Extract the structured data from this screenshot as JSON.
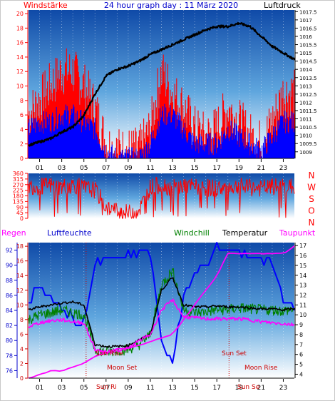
{
  "title": "24 hour graph day : 11 März 2020",
  "colors": {
    "wind_speed": "#ff0000",
    "wind_gust": "#0000ff",
    "pressure": "#000000",
    "wind_dir": "#ff0000",
    "humidity": "#0000ff",
    "windchill": "#008000",
    "temperature": "#000000",
    "dewpoint": "#ff00ff",
    "rain": "#ff0000",
    "axis_left_bottom": "#0000ff",
    "panel_top": "#0f4aa8",
    "panel_bottom": "#ffffff"
  },
  "labels": {
    "windstaerke": "Windstärke",
    "luftdruck": "Luftdruck",
    "regen": "Regen",
    "luftfeuchte": "Luftfeuchte",
    "windchill": "Windchill",
    "temperatur": "Temperatur",
    "taupunkt": "Taupunkt",
    "compass": [
      "N",
      "W",
      "S",
      "O",
      "N"
    ],
    "sun_rise": "Sun Rise",
    "sun_set": "Sun Set",
    "moon_set": "Moon Set",
    "moon_rise": "Moon Rise",
    "sun_ri_short": "Sun Ri",
    "sun_se_short": "Sun Se"
  },
  "x_ticks": [
    "01",
    "03",
    "05",
    "07",
    "09",
    "11",
    "13",
    "15",
    "17",
    "19",
    "21",
    "23"
  ],
  "chart_data": [
    {
      "type": "line",
      "y_left": {
        "ticks": [
          0,
          2,
          4,
          6,
          8,
          10,
          12,
          14,
          16,
          18,
          20
        ],
        "range": [
          0,
          20.5
        ]
      },
      "y_right": {
        "ticks": [
          1009,
          1009.5,
          1010,
          1010.5,
          1011,
          1011.5,
          1012,
          1012.5,
          1013,
          1013.5,
          1014,
          1014.5,
          1015,
          1015.5,
          1016,
          1016.5,
          1017,
          1017.5
        ],
        "range": [
          1008.6,
          1017.6
        ]
      },
      "x": [
        0,
        1,
        2,
        3,
        4,
        5,
        6,
        7,
        8,
        9,
        10,
        11,
        12,
        13,
        14,
        15,
        16,
        17,
        18,
        19,
        20,
        21,
        22,
        23,
        24
      ],
      "series": [
        {
          "name": "Windstärke",
          "axis": "left",
          "values": [
            6,
            8,
            10,
            12,
            12,
            10,
            7,
            2,
            1,
            1,
            1,
            4,
            12,
            9,
            7,
            4,
            3,
            4,
            7,
            5,
            3,
            2,
            5,
            9,
            9
          ]
        },
        {
          "name": "",
          "axis": "left",
          "values": [
            4,
            5,
            5,
            6,
            6,
            5,
            4,
            1,
            0,
            0,
            0,
            2,
            6,
            6,
            4,
            2,
            2,
            2,
            4,
            3,
            2,
            1,
            3,
            5,
            5
          ]
        },
        {
          "name": "Luftdruck",
          "axis": "right",
          "values": [
            1009.4,
            1009.6,
            1009.8,
            1010.2,
            1010.5,
            1011.2,
            1012.5,
            1013.6,
            1014.0,
            1014.2,
            1014.5,
            1014.9,
            1015.2,
            1015.5,
            1015.8,
            1016.1,
            1016.4,
            1016.6,
            1016.6,
            1016.8,
            1016.6,
            1016.0,
            1015.4,
            1015.0,
            1014.6
          ]
        }
      ]
    },
    {
      "type": "line",
      "y_left": {
        "ticks": [
          0,
          45,
          90,
          135,
          180,
          225,
          270,
          315,
          360
        ],
        "range": [
          0,
          360
        ]
      },
      "x": [
        0,
        1,
        2,
        3,
        4,
        5,
        6,
        7,
        8,
        9,
        10,
        11,
        12,
        13,
        14,
        15,
        16,
        17,
        18,
        19,
        20,
        21,
        22,
        23,
        24
      ],
      "series": [
        {
          "name": "",
          "values": [
            260,
            255,
            265,
            250,
            270,
            240,
            230,
            90,
            60,
            40,
            70,
            250,
            270,
            240,
            260,
            250,
            245,
            240,
            250,
            255,
            245,
            240,
            250,
            255,
            250
          ]
        }
      ]
    },
    {
      "type": "line",
      "y_left": {
        "ticks": [
          76,
          78,
          80,
          82,
          84,
          86,
          88,
          90,
          92
        ],
        "range": [
          75,
          93
        ]
      },
      "y_right": {
        "ticks": [
          4,
          5,
          6,
          7,
          8,
          9,
          10,
          11,
          12,
          13,
          14,
          15,
          16,
          17
        ],
        "range": [
          3.6,
          17.3
        ]
      },
      "y_inner": {
        "ticks": [
          0,
          2,
          4,
          6,
          8,
          10,
          12,
          14,
          16,
          18
        ],
        "range": [
          0,
          18.5
        ]
      },
      "x": [
        0,
        1,
        2,
        3,
        4,
        5,
        6,
        7,
        8,
        9,
        10,
        11,
        12,
        13,
        14,
        15,
        16,
        17,
        18,
        19,
        20,
        21,
        22,
        23,
        24
      ],
      "series": [
        {
          "name": "Luftfeuchte",
          "axis": "left",
          "values": [
            85,
            87,
            86,
            84,
            83,
            82,
            90,
            91,
            91,
            91,
            92,
            92,
            80,
            77,
            86,
            89,
            90,
            92,
            92,
            92,
            91,
            91,
            90,
            86,
            84
          ]
        },
        {
          "name": "Temperatur",
          "axis": "right",
          "values": [
            10.5,
            10.8,
            11,
            11.2,
            11.3,
            11,
            7,
            6.8,
            6.8,
            6.9,
            7.5,
            8,
            12.5,
            13.8,
            11,
            10.8,
            10.8,
            10.9,
            10.8,
            10.8,
            10.7,
            10.6,
            10.6,
            10.5,
            10.6
          ]
        },
        {
          "name": "Windchill",
          "axis": "right",
          "values": [
            9.5,
            10,
            10.2,
            10.5,
            10.2,
            10,
            6.5,
            6.2,
            6.4,
            6.5,
            7,
            8,
            13,
            14.5,
            10.5,
            10.2,
            10.3,
            10.5,
            10.5,
            10.7,
            10.6,
            10.5,
            10.5,
            10.4,
            10.6
          ]
        },
        {
          "name": "Taupunkt",
          "axis": "right",
          "values": [
            8.8,
            9.2,
            9.4,
            9.5,
            9.3,
            9.2,
            6.5,
            6.2,
            6.4,
            6.6,
            7.4,
            8,
            10.5,
            11.5,
            9.8,
            9.7,
            9.6,
            9.6,
            9.6,
            9.6,
            9.5,
            9.3,
            9.2,
            9.1,
            9.0
          ]
        },
        {
          "name": "Regen",
          "axis": "inner",
          "values": [
            0,
            0.5,
            1,
            1,
            1.5,
            2,
            3,
            3.5,
            4,
            4,
            4.5,
            5,
            5.5,
            6,
            8,
            10,
            12,
            14,
            17,
            17,
            17,
            17,
            17,
            17,
            18
          ]
        }
      ]
    }
  ]
}
